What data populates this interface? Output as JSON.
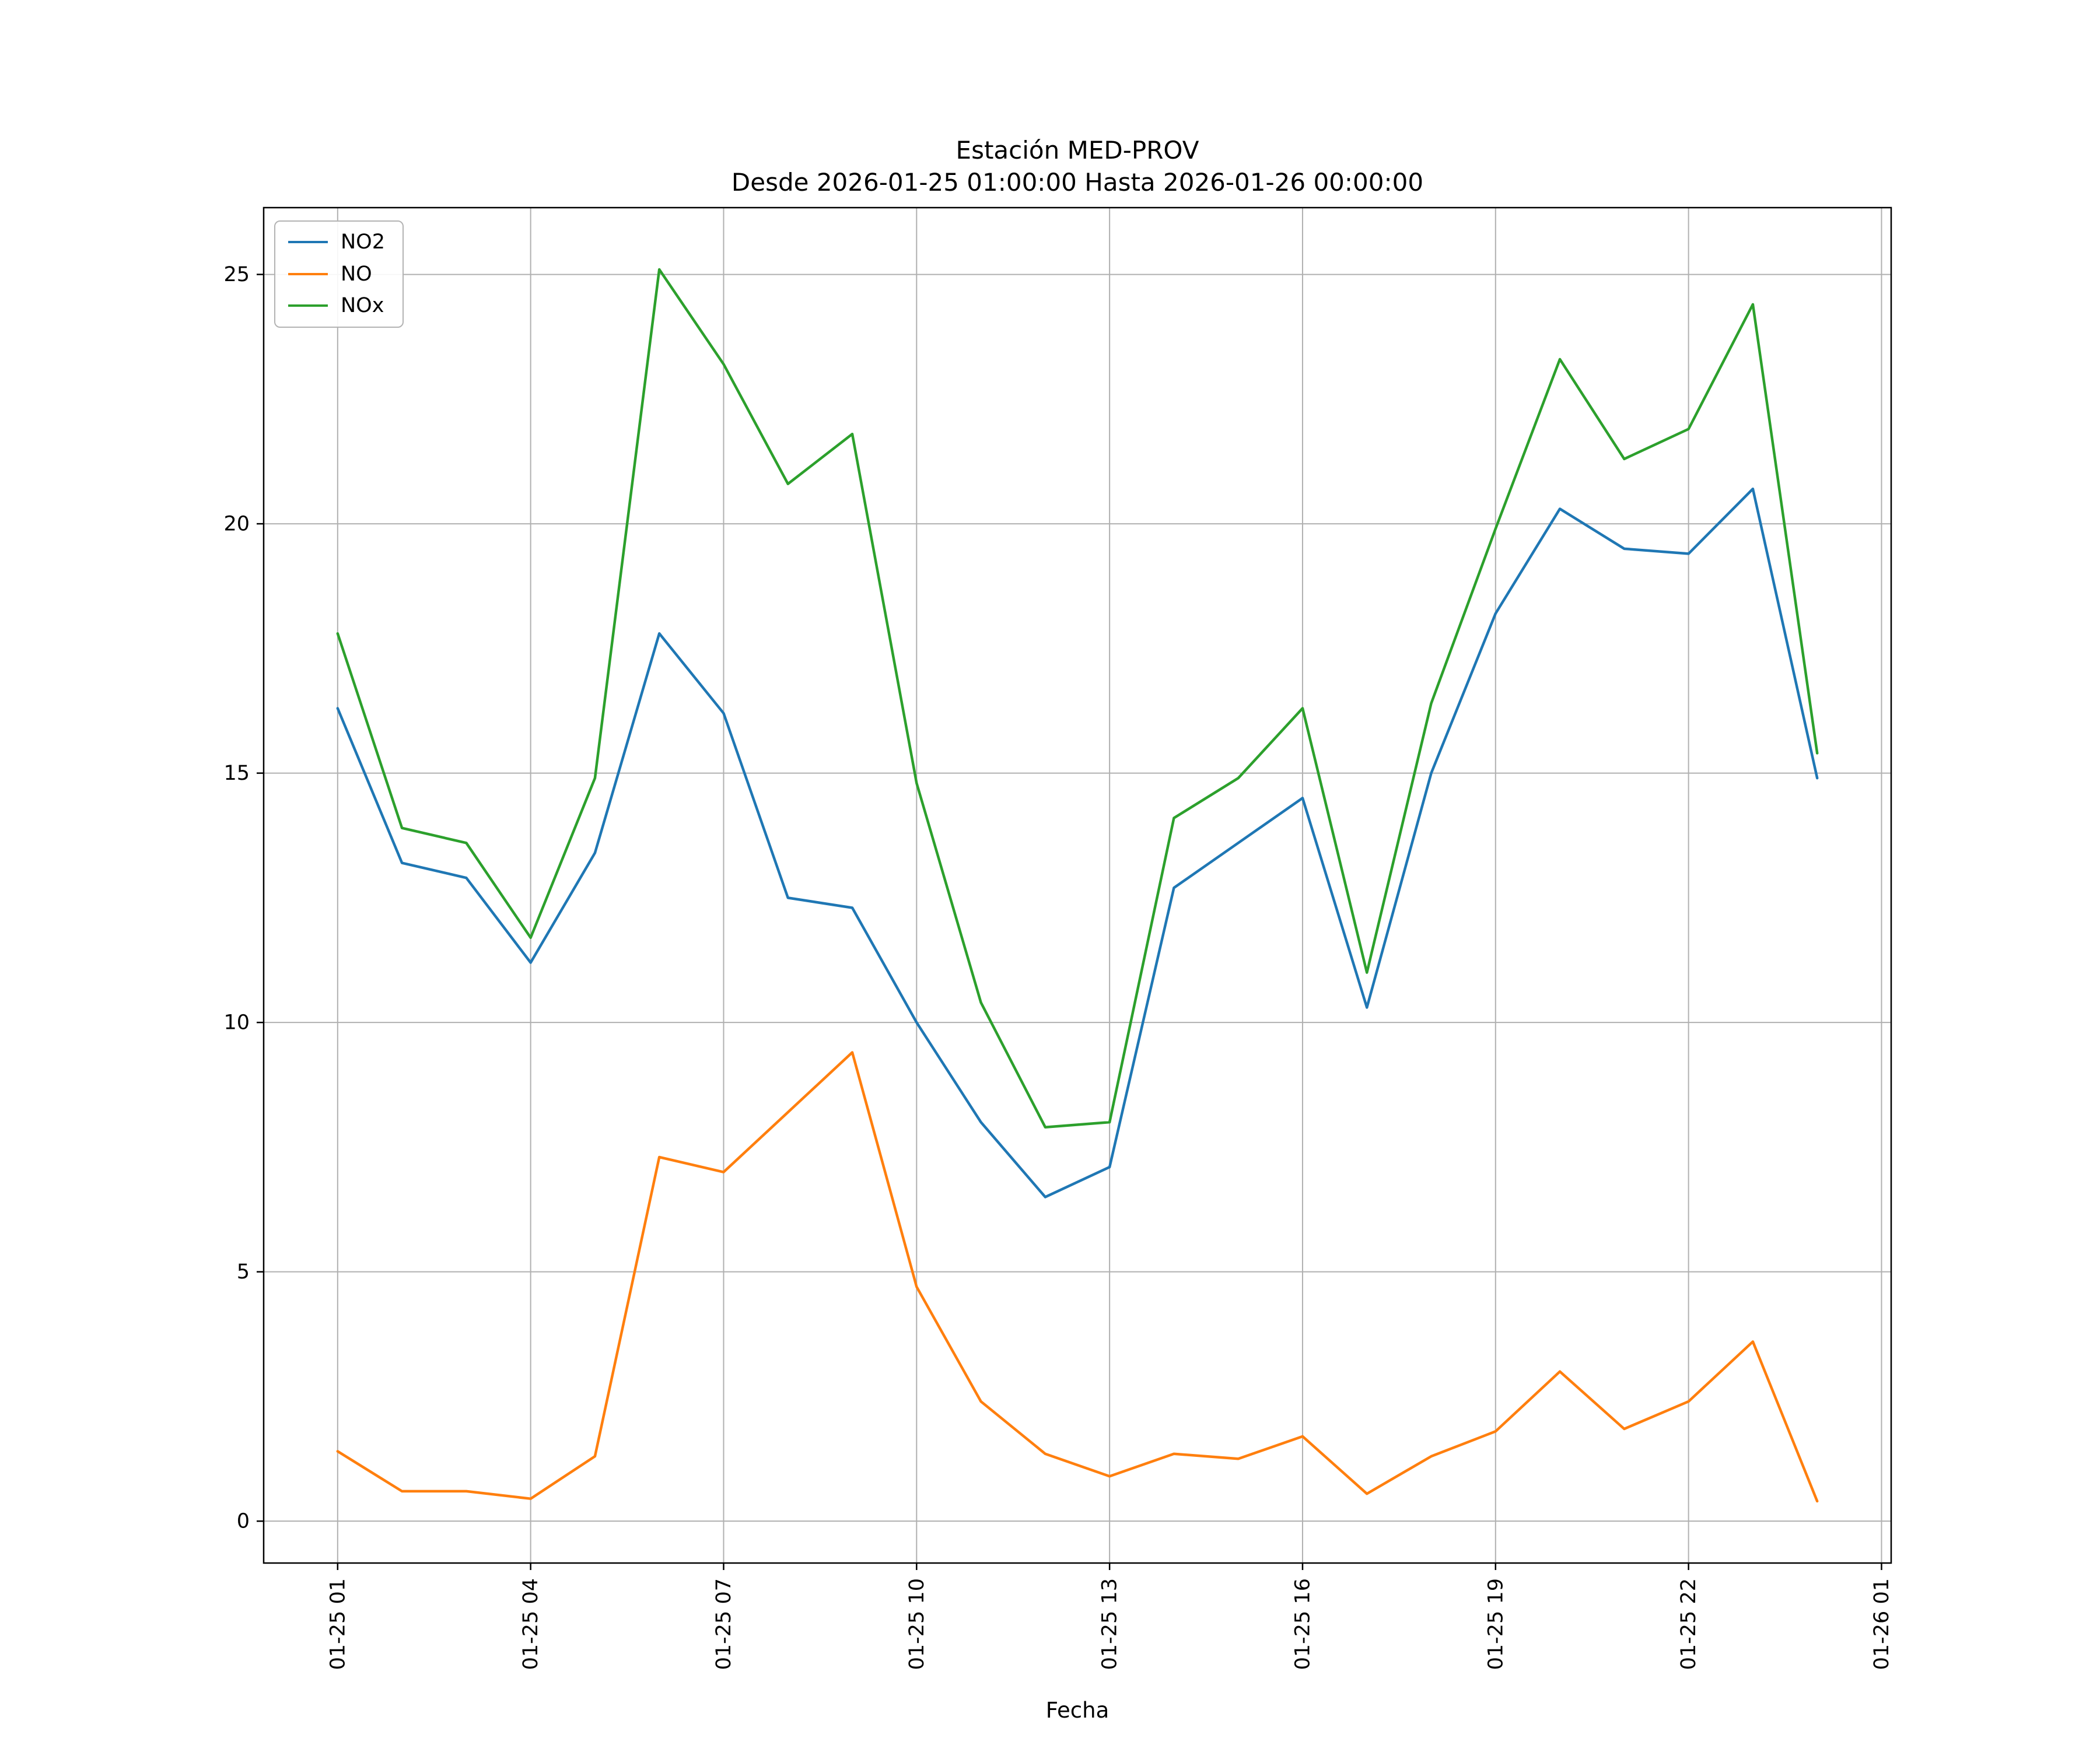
{
  "figure": {
    "title_line1": "Estación MED-PROV",
    "title_line2": "Desde 2026-01-25 01:00:00 Hasta 2026-01-26 00:00:00",
    "xlabel": "Fecha"
  },
  "chart_data": {
    "type": "line",
    "title": "Estación MED-PROV — Desde 2026-01-25 01:00:00 Hasta 2026-01-26 00:00:00",
    "xlabel": "Fecha",
    "ylabel": "",
    "grid": true,
    "legend_position": "upper left",
    "x_hours": [
      1,
      2,
      3,
      4,
      5,
      6,
      7,
      8,
      9,
      10,
      11,
      12,
      13,
      14,
      15,
      16,
      17,
      18,
      19,
      20,
      21,
      22,
      23,
      24
    ],
    "x_tick_hours": [
      1,
      4,
      7,
      10,
      13,
      16,
      19,
      22,
      25
    ],
    "x_tick_labels": [
      "01-25 01",
      "01-25 04",
      "01-25 07",
      "01-25 10",
      "01-25 13",
      "01-25 16",
      "01-25 19",
      "01-25 22",
      "01-26 01"
    ],
    "y_ticks": [
      0,
      5,
      10,
      15,
      20,
      25
    ],
    "xlim": [
      -0.15,
      25.15
    ],
    "ylim": [
      -0.84,
      26.34
    ],
    "grid_color": "#b0b0b0",
    "axis_color": "#000000",
    "series": [
      {
        "name": "NO2",
        "color": "#1f77b4",
        "values": [
          16.3,
          13.2,
          12.9,
          11.2,
          13.4,
          17.8,
          16.2,
          12.5,
          12.3,
          10.0,
          8.0,
          6.5,
          7.1,
          12.7,
          13.6,
          14.5,
          10.3,
          15.0,
          18.2,
          20.3,
          19.5,
          19.4,
          20.7,
          14.9
        ]
      },
      {
        "name": "NO",
        "color": "#ff7f0e",
        "values": [
          1.4,
          0.6,
          0.6,
          0.45,
          1.3,
          7.3,
          7.0,
          8.2,
          9.4,
          4.7,
          2.4,
          1.35,
          0.9,
          1.35,
          1.25,
          1.7,
          0.55,
          1.3,
          1.8,
          3.0,
          1.85,
          2.4,
          3.6,
          0.4
        ]
      },
      {
        "name": "NOx",
        "color": "#2ca02c",
        "values": [
          17.8,
          13.9,
          13.6,
          11.7,
          14.9,
          25.1,
          23.2,
          20.8,
          21.8,
          14.8,
          10.4,
          7.9,
          8.0,
          14.1,
          14.9,
          16.3,
          11.0,
          16.4,
          19.9,
          23.3,
          21.3,
          21.9,
          24.4,
          15.4
        ]
      }
    ]
  }
}
